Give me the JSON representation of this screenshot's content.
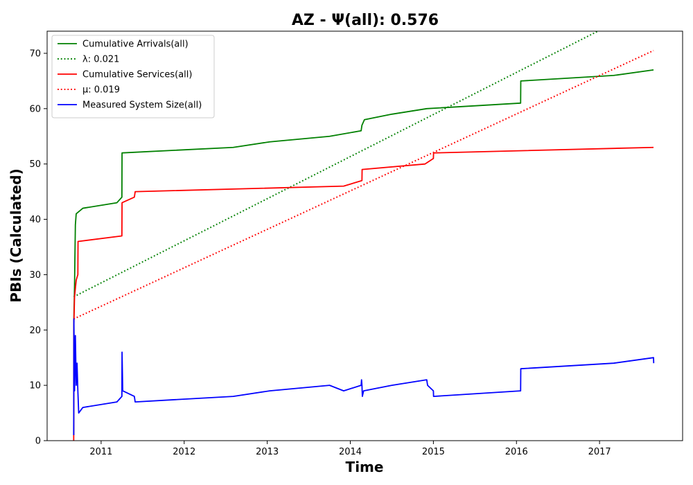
{
  "chart_data": {
    "type": "line",
    "title": "AZ -  Ψ(all): 0.576",
    "xlabel": "Time",
    "ylabel": "PBIs (Calculated)",
    "xlim": [
      2010.35,
      2018.0
    ],
    "ylim": [
      0,
      74
    ],
    "xticks": [
      2011,
      2012,
      2013,
      2014,
      2015,
      2016,
      2017
    ],
    "yticks": [
      0,
      10,
      20,
      30,
      40,
      50,
      60,
      70
    ],
    "legend_position": "top-left",
    "grid": false,
    "series": [
      {
        "name": "Cumulative Arrivals(all)",
        "color": "#008000",
        "style": "solid",
        "points": [
          [
            2010.67,
            1
          ],
          [
            2010.672,
            22
          ],
          [
            2010.68,
            28
          ],
          [
            2010.69,
            39
          ],
          [
            2010.7,
            41
          ],
          [
            2010.78,
            42
          ],
          [
            2011.19,
            43
          ],
          [
            2011.25,
            44
          ],
          [
            2011.252,
            52
          ],
          [
            2012.59,
            53
          ],
          [
            2013.03,
            54
          ],
          [
            2013.75,
            55
          ],
          [
            2014.13,
            56
          ],
          [
            2014.14,
            57
          ],
          [
            2014.17,
            58
          ],
          [
            2014.5,
            59
          ],
          [
            2014.92,
            60
          ],
          [
            2016.05,
            61
          ],
          [
            2016.052,
            65
          ],
          [
            2017.17,
            66
          ],
          [
            2017.65,
            67
          ]
        ]
      },
      {
        "name": "λ: 0.021",
        "color": "#008000",
        "style": "dotted",
        "points": [
          [
            2010.67,
            26
          ],
          [
            2016.98,
            74
          ]
        ]
      },
      {
        "name": "Cumulative Services(all)",
        "color": "#ff0000",
        "style": "solid",
        "points": [
          [
            2010.67,
            0
          ],
          [
            2010.672,
            21
          ],
          [
            2010.68,
            26
          ],
          [
            2010.7,
            29
          ],
          [
            2010.72,
            30
          ],
          [
            2010.722,
            36
          ],
          [
            2011.25,
            37
          ],
          [
            2011.252,
            43
          ],
          [
            2011.4,
            44
          ],
          [
            2011.41,
            45
          ],
          [
            2013.92,
            46
          ],
          [
            2014.14,
            47
          ],
          [
            2014.142,
            49
          ],
          [
            2014.9,
            50
          ],
          [
            2015.0,
            51
          ],
          [
            2015.002,
            52
          ],
          [
            2017.65,
            53
          ]
        ]
      },
      {
        "name": "μ: 0.019",
        "color": "#ff0000",
        "style": "dotted",
        "points": [
          [
            2010.67,
            22
          ],
          [
            2017.65,
            70.5
          ]
        ]
      },
      {
        "name": "Measured System Size(all)",
        "color": "#0000ff",
        "style": "solid",
        "points": [
          [
            2010.67,
            1
          ],
          [
            2010.672,
            22
          ],
          [
            2010.68,
            9
          ],
          [
            2010.69,
            19
          ],
          [
            2010.7,
            10
          ],
          [
            2010.71,
            14
          ],
          [
            2010.72,
            9
          ],
          [
            2010.73,
            5
          ],
          [
            2010.78,
            6
          ],
          [
            2011.19,
            7
          ],
          [
            2011.25,
            8
          ],
          [
            2011.252,
            16
          ],
          [
            2011.26,
            9
          ],
          [
            2011.4,
            8
          ],
          [
            2011.41,
            7
          ],
          [
            2012.59,
            8
          ],
          [
            2013.03,
            9
          ],
          [
            2013.75,
            10
          ],
          [
            2013.92,
            9
          ],
          [
            2014.13,
            10
          ],
          [
            2014.135,
            11
          ],
          [
            2014.14,
            10
          ],
          [
            2014.145,
            8
          ],
          [
            2014.16,
            9
          ],
          [
            2014.5,
            10
          ],
          [
            2014.92,
            11
          ],
          [
            2014.93,
            10
          ],
          [
            2015.0,
            9
          ],
          [
            2015.002,
            8
          ],
          [
            2016.05,
            9
          ],
          [
            2016.052,
            13
          ],
          [
            2017.17,
            14
          ],
          [
            2017.65,
            15
          ],
          [
            2017.652,
            14
          ]
        ]
      }
    ]
  }
}
